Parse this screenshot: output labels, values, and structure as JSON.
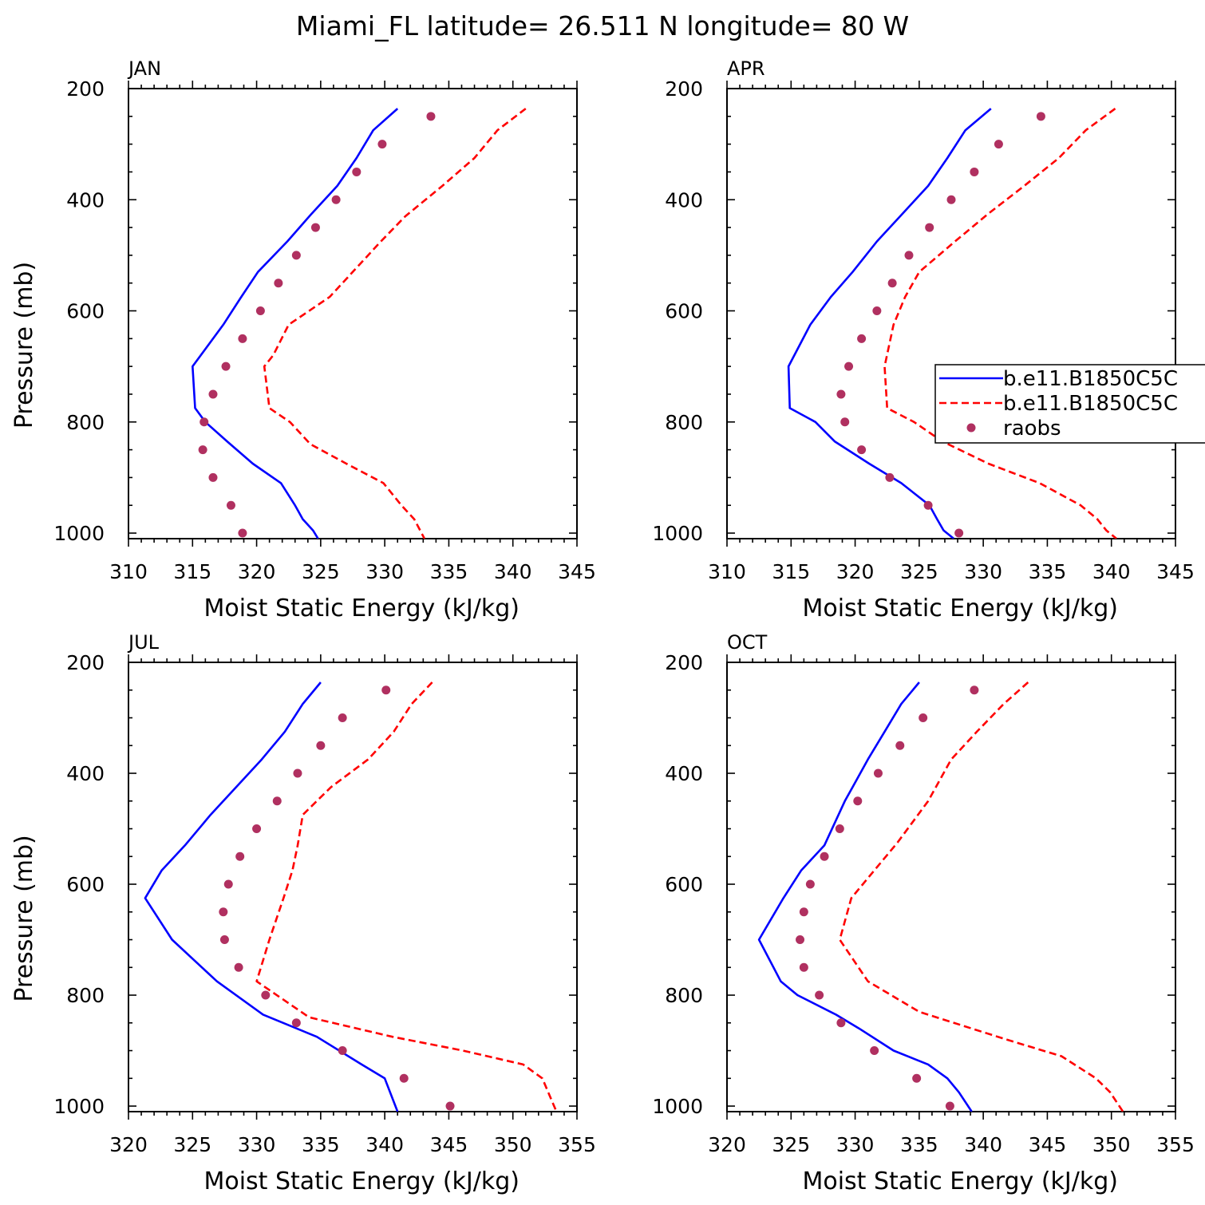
{
  "title": "Miami_FL  latitude= 26.511 N longitude= 80 W",
  "chart_data": [
    {
      "type": "line",
      "panel_label": "JAN",
      "xlabel": "Moist Static Energy (kJ/kg)",
      "ylabel": "Pressure (mb)",
      "xlim": [
        310,
        345
      ],
      "ylim": [
        1000,
        200
      ],
      "xticks": [
        "310",
        "315",
        "320",
        "325",
        "330",
        "335",
        "340",
        "345"
      ],
      "yticks": [
        "200",
        "400",
        "600",
        "800",
        "1000"
      ],
      "series": [
        {
          "name": "b.e11.B1850C5C",
          "style": "solid",
          "color": "#0000ff",
          "x": [
            331.0,
            329.1,
            327.8,
            326.3,
            324.3,
            322.4,
            320.1,
            318.8,
            317.4,
            315.0,
            315.2,
            316.0,
            317.7,
            319.7,
            321.9,
            323.0,
            323.6,
            324.4,
            324.8
          ],
          "y": [
            236,
            275,
            325,
            375,
            425,
            475,
            530,
            575,
            625,
            700,
            775,
            800,
            835,
            875,
            910,
            950,
            975,
            995,
            1010
          ]
        },
        {
          "name": "b.e11.B1850C5C",
          "style": "dashed",
          "color": "#ff0000",
          "x": [
            341.0,
            338.8,
            337.0,
            334.5,
            331.6,
            329.7,
            325.7,
            322.5,
            321.3,
            320.6,
            321.0,
            322.6,
            324.2,
            327.0,
            329.9,
            331.3,
            332.3,
            333.1
          ],
          "y": [
            236,
            275,
            325,
            375,
            430,
            475,
            575,
            625,
            680,
            700,
            775,
            800,
            840,
            875,
            910,
            950,
            975,
            1010
          ]
        },
        {
          "name": "raobs",
          "style": "markers",
          "color": "#b03060",
          "x": [
            333.6,
            329.8,
            327.8,
            326.2,
            324.6,
            323.1,
            321.7,
            320.3,
            318.9,
            317.6,
            316.6,
            315.9,
            315.8,
            316.6,
            318.0,
            318.9
          ],
          "y": [
            250,
            300,
            350,
            400,
            450,
            500,
            550,
            600,
            650,
            700,
            750,
            800,
            850,
            900,
            950,
            1000
          ]
        }
      ]
    },
    {
      "type": "line",
      "panel_label": "APR",
      "xlabel": "Moist Static Energy (kJ/kg)",
      "ylabel": "",
      "xlim": [
        310,
        345
      ],
      "ylim": [
        1000,
        200
      ],
      "xticks": [
        "310",
        "315",
        "320",
        "325",
        "330",
        "335",
        "340",
        "345"
      ],
      "yticks": [
        "200",
        "400",
        "600",
        "800",
        "1000"
      ],
      "legend": {
        "entries": [
          "b.e11.B1850C5C",
          "b.e11.B1850C5C",
          "raobs"
        ],
        "placement": "right"
      },
      "series": [
        {
          "name": "b.e11.B1850C5C",
          "style": "solid",
          "color": "#0000ff",
          "x": [
            330.6,
            328.6,
            327.2,
            325.7,
            323.7,
            321.7,
            319.8,
            318.1,
            316.5,
            314.8,
            314.9,
            316.9,
            318.4,
            321.1,
            323.6,
            325.8,
            326.4,
            326.9,
            327.7
          ],
          "y": [
            236,
            275,
            325,
            375,
            425,
            475,
            530,
            575,
            625,
            700,
            775,
            800,
            835,
            875,
            910,
            950,
            975,
            995,
            1010
          ]
        },
        {
          "name": "b.e11.B1850C5C",
          "style": "dashed",
          "color": "#ff0000",
          "x": [
            340.3,
            338.0,
            335.9,
            333.2,
            330.4,
            327.8,
            325.0,
            323.9,
            323.0,
            322.3,
            322.5,
            324.6,
            326.8,
            330.4,
            334.4,
            337.6,
            338.9,
            339.6,
            340.4
          ],
          "y": [
            236,
            275,
            325,
            375,
            425,
            475,
            530,
            575,
            625,
            700,
            775,
            800,
            835,
            875,
            910,
            950,
            975,
            995,
            1010
          ]
        },
        {
          "name": "raobs",
          "style": "markers",
          "color": "#b03060",
          "x": [
            334.5,
            331.2,
            329.3,
            327.5,
            325.8,
            324.2,
            322.9,
            321.7,
            320.5,
            319.5,
            318.9,
            319.2,
            320.5,
            322.7,
            325.7,
            328.1
          ],
          "y": [
            250,
            300,
            350,
            400,
            450,
            500,
            550,
            600,
            650,
            700,
            750,
            800,
            850,
            900,
            950,
            1000
          ]
        }
      ]
    },
    {
      "type": "line",
      "panel_label": "JUL",
      "xlabel": "Moist Static Energy (kJ/kg)",
      "ylabel": "Pressure (mb)",
      "xlim": [
        320,
        355
      ],
      "ylim": [
        1000,
        200
      ],
      "xticks": [
        "320",
        "325",
        "330",
        "335",
        "340",
        "345",
        "350",
        "355"
      ],
      "yticks": [
        "200",
        "400",
        "600",
        "800",
        "1000"
      ],
      "series": [
        {
          "name": "b.e11.B1850C5C",
          "style": "solid",
          "color": "#0000ff",
          "x": [
            335.0,
            333.6,
            332.2,
            330.4,
            328.4,
            326.4,
            324.4,
            322.6,
            321.3,
            323.4,
            326.9,
            330.5,
            334.7,
            338.2,
            340.0,
            341.0
          ],
          "y": [
            236,
            275,
            325,
            375,
            425,
            475,
            530,
            575,
            625,
            700,
            775,
            835,
            875,
            925,
            950,
            1010
          ]
        },
        {
          "name": "b.e11.B1850C5C",
          "style": "dashed",
          "color": "#ff0000",
          "x": [
            343.7,
            342.1,
            340.7,
            338.7,
            335.8,
            333.6,
            333.2,
            332.8,
            332.1,
            331.0,
            330.0,
            334.1,
            340.6,
            346.1,
            350.8,
            352.3,
            353.4
          ],
          "y": [
            236,
            275,
            325,
            375,
            425,
            475,
            530,
            575,
            625,
            700,
            775,
            840,
            875,
            900,
            925,
            950,
            1010
          ]
        },
        {
          "name": "raobs",
          "style": "markers",
          "color": "#b03060",
          "x": [
            340.1,
            336.7,
            335.0,
            333.2,
            331.6,
            330.0,
            328.7,
            327.8,
            327.4,
            327.5,
            328.6,
            330.7,
            333.1,
            336.7,
            341.5,
            345.1
          ],
          "y": [
            250,
            300,
            350,
            400,
            450,
            500,
            550,
            600,
            650,
            700,
            750,
            800,
            850,
            900,
            950,
            1000
          ]
        }
      ]
    },
    {
      "type": "line",
      "panel_label": "OCT",
      "xlabel": "Moist Static Energy (kJ/kg)",
      "ylabel": "",
      "xlim": [
        320,
        355
      ],
      "ylim": [
        1000,
        200
      ],
      "xticks": [
        "320",
        "325",
        "330",
        "335",
        "340",
        "345",
        "350",
        "355"
      ],
      "yticks": [
        "200",
        "400",
        "600",
        "800",
        "1000"
      ],
      "series": [
        {
          "name": "b.e11.B1850C5C",
          "style": "solid",
          "color": "#0000ff",
          "x": [
            335.0,
            333.6,
            332.3,
            331.0,
            329.8,
            329.2,
            327.6,
            325.8,
            324.4,
            322.5,
            324.2,
            325.5,
            328.5,
            330.3,
            333.0,
            335.7,
            337.2,
            338.1,
            339.1
          ],
          "y": [
            236,
            275,
            325,
            375,
            425,
            450,
            530,
            575,
            625,
            700,
            775,
            800,
            835,
            860,
            900,
            925,
            950,
            975,
            1010
          ]
        },
        {
          "name": "b.e11.B1850C5C",
          "style": "dashed",
          "color": "#ff0000",
          "x": [
            343.5,
            341.6,
            339.5,
            337.5,
            335.7,
            333.3,
            331.5,
            329.7,
            328.8,
            331.0,
            335.0,
            341.8,
            346.1,
            348.8,
            349.9,
            350.9
          ],
          "y": [
            236,
            275,
            325,
            375,
            450,
            525,
            575,
            625,
            700,
            775,
            830,
            880,
            910,
            950,
            975,
            1010
          ]
        },
        {
          "name": "raobs",
          "style": "markers",
          "color": "#b03060",
          "x": [
            339.3,
            335.3,
            333.5,
            331.8,
            330.2,
            328.8,
            327.6,
            326.5,
            326.0,
            325.7,
            326.0,
            327.2,
            328.9,
            331.5,
            334.8,
            337.4
          ],
          "y": [
            250,
            300,
            350,
            400,
            450,
            500,
            550,
            600,
            650,
            700,
            750,
            800,
            850,
            900,
            950,
            1000
          ]
        }
      ]
    }
  ]
}
